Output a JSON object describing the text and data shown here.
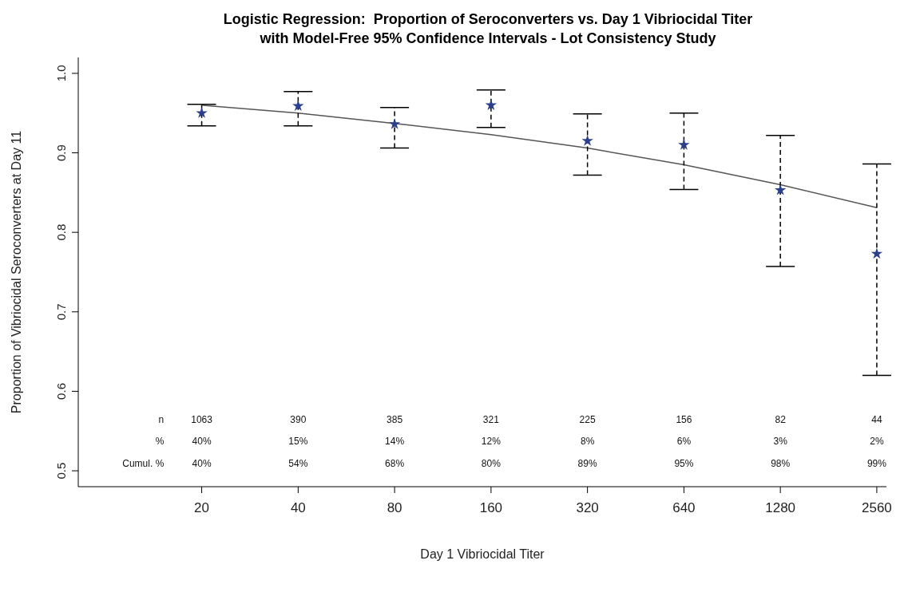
{
  "chart_data": {
    "type": "scatter",
    "title": "Logistic Regression:  Proportion of Seroconverters vs. Day 1 Vibriocidal Titer\nwith Model-Free 95% Confidence Intervals - Lot Consistency Study",
    "xlabel": "Day 1 Vibriocidal Titer",
    "ylabel": "Proportion of Vibriocidal Seroconverters at Day 11",
    "categories": [
      "20",
      "40",
      "80",
      "160",
      "320",
      "640",
      "1280",
      "2560"
    ],
    "series": [
      {
        "color": "#2b3f8a",
        "marker": "star",
        "values": [
          0.95,
          0.959,
          0.936,
          0.96,
          0.915,
          0.91,
          0.853,
          0.773
        ],
        "errors": [
          [
            0.934,
            0.961
          ],
          [
            0.934,
            0.977
          ],
          [
            0.906,
            0.957
          ],
          [
            0.932,
            0.979
          ],
          [
            0.872,
            0.949
          ],
          [
            0.854,
            0.95
          ],
          [
            0.757,
            0.922
          ],
          [
            0.62,
            0.886
          ]
        ]
      },
      {
        "type": "line",
        "color": "#555555",
        "marker": "none",
        "values": [
          0.96,
          0.95,
          0.937,
          0.923,
          0.906,
          0.885,
          0.86,
          0.831
        ]
      }
    ],
    "ylim": [
      0.48,
      1.02
    ],
    "yticks": [
      0.5,
      0.6,
      0.7,
      0.8,
      0.9,
      {
        "value": 1.0,
        "label": "1.0"
      }
    ],
    "grid": false,
    "legend": false,
    "annotations": [
      "n",
      "%",
      "Cumul. %",
      "1063",
      "390",
      "385",
      "321",
      "225",
      "156",
      "82",
      "44",
      "40%",
      "15%",
      "14%",
      "12%",
      "8%",
      "6%",
      "3%",
      "2%",
      "40%",
      "54%",
      "68%",
      "80%",
      "89%",
      "95%",
      "98%",
      "99%"
    ]
  }
}
